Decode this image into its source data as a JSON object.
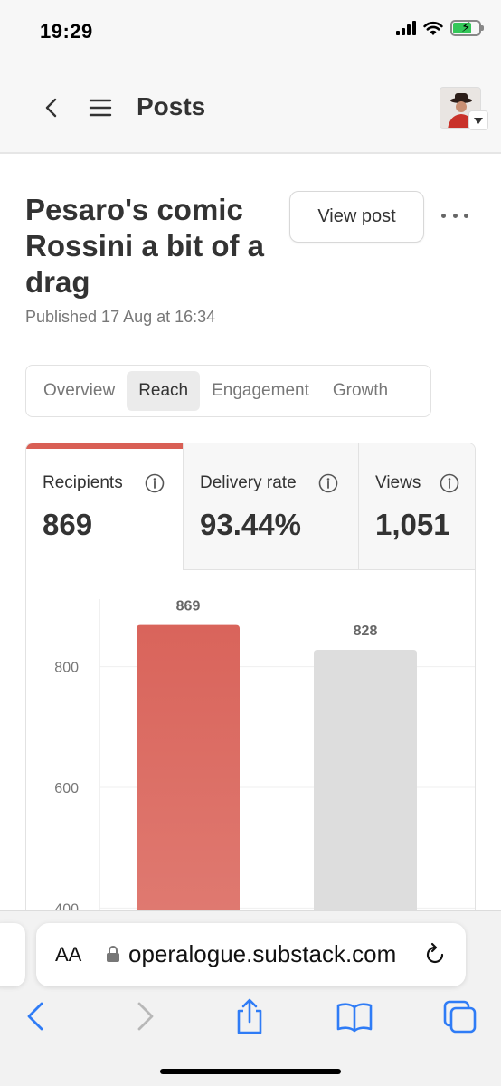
{
  "status_bar": {
    "time": "19:29"
  },
  "header": {
    "title": "Posts"
  },
  "post": {
    "title": "Pesaro's comic Rossini a bit of a drag",
    "published": "Published 17 Aug at 16:34",
    "view_post_label": "View post"
  },
  "tabs": [
    {
      "label": "Overview",
      "active": false
    },
    {
      "label": "Reach",
      "active": true
    },
    {
      "label": "Engagement",
      "active": false
    },
    {
      "label": "Growth",
      "active": false
    }
  ],
  "stats": [
    {
      "label": "Recipients",
      "value": "869",
      "selected": true
    },
    {
      "label": "Delivery rate",
      "value": "93.44%",
      "selected": false
    },
    {
      "label": "Views",
      "value": "1,051",
      "selected": false
    }
  ],
  "chart_data": {
    "type": "bar",
    "categories": [
      "",
      ""
    ],
    "values": [
      869,
      828
    ],
    "data_labels": [
      "869",
      "828"
    ],
    "colors": [
      "#d95f55",
      "#dddddd"
    ],
    "yticks": [
      400,
      600,
      800
    ],
    "ylim": [
      330,
      900
    ],
    "grid": true
  },
  "browser": {
    "text_size_label": "AA",
    "url": "operalogue.substack.com"
  },
  "colors": {
    "accent": "#d95f55",
    "inactive_bar": "#dddddd"
  }
}
